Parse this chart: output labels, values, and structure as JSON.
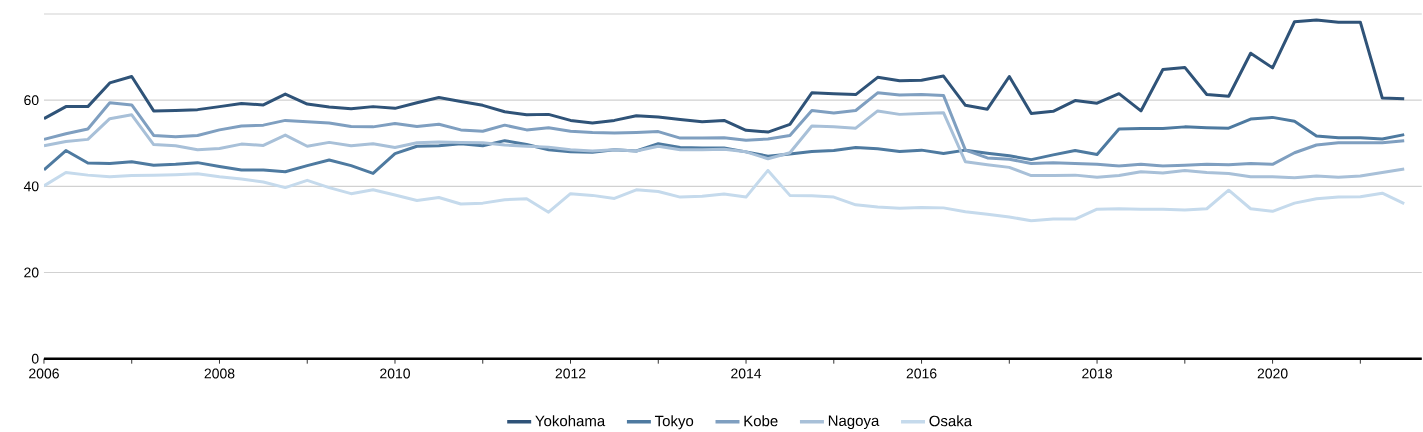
{
  "chart_data": {
    "type": "line",
    "x": [
      2006,
      2006.25,
      2006.5,
      2006.75,
      2007,
      2007.25,
      2007.5,
      2007.75,
      2008,
      2008.25,
      2008.5,
      2008.75,
      2009,
      2009.25,
      2009.5,
      2009.75,
      2010,
      2010.25,
      2010.5,
      2010.75,
      2011,
      2011.25,
      2011.5,
      2011.75,
      2012,
      2012.25,
      2012.5,
      2012.75,
      2013,
      2013.25,
      2013.5,
      2013.75,
      2014,
      2014.25,
      2014.5,
      2014.75,
      2015,
      2015.25,
      2015.5,
      2015.75,
      2016,
      2016.25,
      2016.5,
      2016.75,
      2017,
      2017.25,
      2017.5,
      2017.75,
      2018,
      2018.25,
      2018.5,
      2018.75,
      2019,
      2019.25,
      2019.5,
      2019.75,
      2020,
      2020.25,
      2020.5,
      2020.75,
      2021,
      2021.25,
      2021.5
    ],
    "series": [
      {
        "name": "Yokohama",
        "color": "#2f5378",
        "values": [
          55.7,
          58.5,
          58.5,
          64.0,
          65.5,
          57.5,
          57.6,
          57.8,
          58.5,
          59.2,
          58.9,
          61.4,
          59.1,
          58.4,
          58.0,
          58.5,
          58.1,
          59.4,
          60.6,
          59.7,
          58.8,
          57.3,
          56.6,
          56.7,
          55.3,
          54.7,
          55.3,
          56.4,
          56.1,
          55.5,
          55.0,
          55.3,
          53.0,
          52.6,
          54.4,
          61.7,
          61.5,
          61.3,
          65.3,
          64.5,
          64.6,
          65.6,
          58.8,
          57.9,
          65.5,
          56.9,
          57.4,
          59.9,
          59.3,
          61.5,
          57.5,
          67.1,
          67.6,
          61.3,
          60.9,
          70.9,
          67.5,
          78.2,
          78.6,
          78.1,
          78.1,
          60.5,
          60.3
        ]
      },
      {
        "name": "Tokyo",
        "color": "#4e7aa0",
        "values": [
          43.8,
          48.3,
          45.4,
          45.3,
          45.7,
          44.9,
          45.1,
          45.5,
          44.6,
          43.8,
          43.8,
          43.4,
          44.8,
          46.1,
          44.8,
          43.0,
          47.6,
          49.3,
          49.4,
          49.9,
          49.4,
          50.6,
          49.7,
          48.5,
          48.0,
          47.9,
          48.5,
          48.2,
          49.9,
          49.0,
          48.9,
          48.9,
          48.0,
          47.0,
          47.5,
          48.1,
          48.3,
          49.0,
          48.7,
          48.1,
          48.4,
          47.6,
          48.4,
          47.7,
          47.1,
          46.2,
          47.3,
          48.3,
          47.4,
          53.3,
          53.4,
          53.4,
          53.8,
          53.6,
          53.5,
          55.6,
          56.0,
          55.1,
          51.7,
          51.3,
          51.3,
          51.0,
          52.0
        ]
      },
      {
        "name": "Kobe",
        "color": "#7f9fc0",
        "values": [
          50.9,
          52.2,
          53.3,
          59.4,
          58.9,
          51.8,
          51.5,
          51.8,
          53.1,
          54.0,
          54.2,
          55.3,
          55.0,
          54.7,
          53.9,
          53.8,
          54.6,
          53.9,
          54.4,
          53.1,
          52.8,
          54.2,
          53.1,
          53.6,
          52.8,
          52.5,
          52.4,
          52.5,
          52.7,
          51.2,
          51.2,
          51.3,
          50.7,
          51.0,
          51.8,
          57.6,
          57.0,
          57.6,
          61.7,
          61.2,
          61.3,
          61.1,
          48.4,
          46.6,
          46.3,
          45.3,
          45.5,
          45.3,
          45.1,
          44.7,
          45.1,
          44.7,
          44.9,
          45.1,
          45.0,
          45.3,
          45.1,
          47.8,
          49.6,
          50.1,
          50.1,
          50.1,
          50.6
        ]
      },
      {
        "name": "Nagoya",
        "color": "#a8c0d8",
        "values": [
          49.4,
          50.4,
          50.9,
          55.7,
          56.6,
          49.7,
          49.4,
          48.5,
          48.8,
          49.8,
          49.5,
          51.9,
          49.3,
          50.2,
          49.4,
          49.9,
          49.0,
          50.1,
          50.3,
          50.2,
          50.1,
          49.6,
          49.3,
          49.1,
          48.5,
          48.2,
          48.5,
          48.2,
          49.3,
          48.5,
          48.5,
          48.6,
          48.0,
          46.4,
          47.8,
          54.0,
          53.8,
          53.5,
          57.5,
          56.7,
          56.9,
          57.1,
          45.7,
          45.0,
          44.4,
          42.5,
          42.5,
          42.6,
          42.1,
          42.5,
          43.4,
          43.1,
          43.7,
          43.2,
          43.0,
          42.2,
          42.2,
          42.0,
          42.4,
          42.1,
          42.4,
          43.2,
          44.0
        ]
      },
      {
        "name": "Osaka",
        "color": "#c5daec",
        "values": [
          40.1,
          43.2,
          42.6,
          42.2,
          42.5,
          42.6,
          42.7,
          42.9,
          42.2,
          41.7,
          41.0,
          39.7,
          41.4,
          39.7,
          38.3,
          39.2,
          38.0,
          36.7,
          37.4,
          35.9,
          36.1,
          36.9,
          37.1,
          34.0,
          38.3,
          37.9,
          37.2,
          39.2,
          38.8,
          37.5,
          37.7,
          38.2,
          37.5,
          43.7,
          37.9,
          37.8,
          37.5,
          35.7,
          35.2,
          34.9,
          35.1,
          35.0,
          34.1,
          33.5,
          32.9,
          32.0,
          32.4,
          32.4,
          34.7,
          34.8,
          34.7,
          34.7,
          34.5,
          34.8,
          39.1,
          34.8,
          34.2,
          36.1,
          37.1,
          37.5,
          37.6,
          38.4,
          36.0
        ]
      }
    ],
    "xlim": [
      2006,
      2021.7
    ],
    "xticks": [
      2006,
      {
        "value": 2007,
        "label": null
      },
      2008,
      {
        "value": 2009,
        "label": null
      },
      2010,
      {
        "value": 2011,
        "label": null
      },
      2012,
      {
        "value": 2013,
        "label": null
      },
      2014,
      {
        "value": 2015,
        "label": null
      },
      2016,
      {
        "value": 2017,
        "label": null
      },
      2018,
      {
        "value": 2019,
        "label": null
      },
      2020,
      {
        "value": 2021,
        "label": null
      }
    ],
    "ylim": [
      0,
      80
    ],
    "yticks": [
      0,
      20,
      40,
      60,
      {
        "value": 80,
        "label": null
      }
    ],
    "grid": "y",
    "legend": "bottom",
    "marker": "none",
    "line_style": "solid"
  }
}
